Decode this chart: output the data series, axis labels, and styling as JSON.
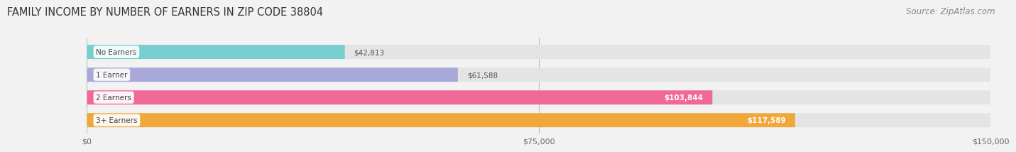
{
  "title": "FAMILY INCOME BY NUMBER OF EARNERS IN ZIP CODE 38804",
  "source": "Source: ZipAtlas.com",
  "categories": [
    "No Earners",
    "1 Earner",
    "2 Earners",
    "3+ Earners"
  ],
  "values": [
    42813,
    61588,
    103844,
    117589
  ],
  "bar_colors": [
    "#76cece",
    "#a9a9d9",
    "#f06898",
    "#f0a83a"
  ],
  "value_label_colors": [
    "#555555",
    "#555555",
    "#ffffff",
    "#ffffff"
  ],
  "value_labels": [
    "$42,813",
    "$61,588",
    "$103,844",
    "$117,589"
  ],
  "xlim": [
    0,
    150000
  ],
  "xticks": [
    0,
    75000,
    150000
  ],
  "xtick_labels": [
    "$0",
    "$75,000",
    "$150,000"
  ],
  "background_color": "#f2f2f2",
  "bar_bg_color": "#e4e4e4",
  "title_fontsize": 10.5,
  "source_fontsize": 8.5,
  "bar_height": 0.62,
  "bar_gap": 1.0
}
